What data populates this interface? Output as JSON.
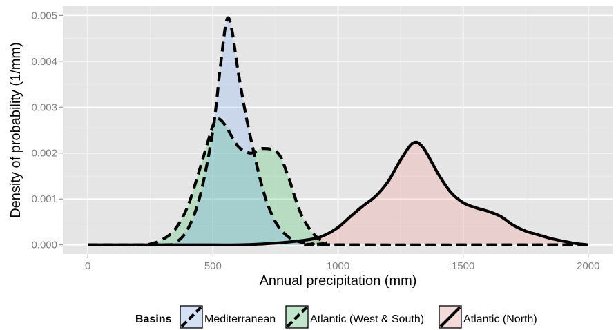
{
  "chart_data": {
    "type": "area",
    "xlabel": "Annual precipitation (mm)",
    "ylabel": "Density of probability (1/mm)",
    "xlim": [
      -100,
      2100
    ],
    "ylim": [
      -0.0002,
      0.0052
    ],
    "x_ticks": [
      0,
      500,
      1000,
      1500,
      2000
    ],
    "x_tick_labels": [
      "0",
      "500",
      "1000",
      "1500",
      "2000"
    ],
    "y_ticks": [
      0,
      0.001,
      0.002,
      0.003,
      0.004,
      0.005
    ],
    "y_tick_labels": [
      "0.000",
      "0.001",
      "0.002",
      "0.003",
      "0.004",
      "0.005"
    ],
    "grid": true,
    "legend": {
      "title": "Basins",
      "position": "bottom"
    },
    "series": [
      {
        "name": "Atlantic (North)",
        "fill": "#f8766d",
        "line_style": "solid",
        "points": [
          [
            0,
            0
          ],
          [
            400,
            0
          ],
          [
            600,
            0
          ],
          [
            700,
            2e-05
          ],
          [
            800,
            6e-05
          ],
          [
            900,
            0.00013
          ],
          [
            950,
            0.00022
          ],
          [
            1000,
            0.00038
          ],
          [
            1050,
            0.00062
          ],
          [
            1100,
            0.00085
          ],
          [
            1150,
            0.00106
          ],
          [
            1200,
            0.00138
          ],
          [
            1250,
            0.00185
          ],
          [
            1300,
            0.00222
          ],
          [
            1340,
            0.00212
          ],
          [
            1400,
            0.00155
          ],
          [
            1450,
            0.00115
          ],
          [
            1500,
            0.00092
          ],
          [
            1550,
            0.00081
          ],
          [
            1600,
            0.00073
          ],
          [
            1650,
            0.00062
          ],
          [
            1700,
            0.00043
          ],
          [
            1750,
            0.0003
          ],
          [
            1800,
            0.00022
          ],
          [
            1850,
            0.00014
          ],
          [
            1900,
            8e-05
          ],
          [
            1950,
            3e-05
          ],
          [
            2000,
            0
          ]
        ]
      },
      {
        "name": "Atlantic (West & South)",
        "fill": "#00ba38",
        "line_style": "dashed",
        "points": [
          [
            0,
            0
          ],
          [
            200,
            0
          ],
          [
            250,
            2e-05
          ],
          [
            300,
            0.00012
          ],
          [
            350,
            0.00035
          ],
          [
            400,
            0.00085
          ],
          [
            450,
            0.0017
          ],
          [
            500,
            0.0026
          ],
          [
            520,
            0.00275
          ],
          [
            550,
            0.0026
          ],
          [
            600,
            0.00215
          ],
          [
            650,
            0.002
          ],
          [
            700,
            0.0021
          ],
          [
            760,
            0.002
          ],
          [
            800,
            0.0015
          ],
          [
            850,
            0.0007
          ],
          [
            900,
            0.00025
          ],
          [
            950,
            5e-05
          ],
          [
            1000,
            0
          ],
          [
            2000,
            0
          ]
        ]
      },
      {
        "name": "Mediterranean",
        "fill": "#619cff",
        "line_style": "dashed",
        "points": [
          [
            0,
            0
          ],
          [
            300,
            0
          ],
          [
            350,
            5e-05
          ],
          [
            400,
            0.00035
          ],
          [
            450,
            0.0011
          ],
          [
            500,
            0.0025
          ],
          [
            530,
            0.0039
          ],
          [
            555,
            0.0049
          ],
          [
            575,
            0.0047
          ],
          [
            600,
            0.0038
          ],
          [
            640,
            0.0026
          ],
          [
            700,
            0.0012
          ],
          [
            750,
            0.0005
          ],
          [
            800,
            0.00018
          ],
          [
            850,
            6e-05
          ],
          [
            900,
            2e-05
          ],
          [
            950,
            0
          ],
          [
            2000,
            0
          ]
        ]
      }
    ]
  }
}
